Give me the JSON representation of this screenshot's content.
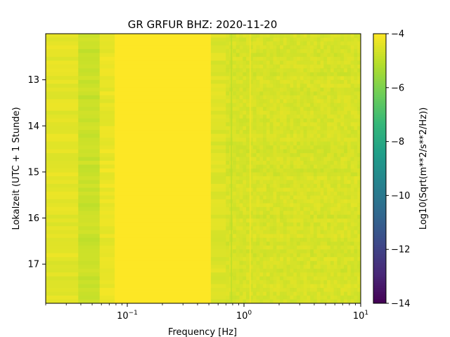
{
  "chart_data": {
    "type": "heatmap",
    "title": "GR GRFUR  BHZ: 2020-11-20",
    "xlabel": "Frequency [Hz]",
    "ylabel": "Lokalzeit (UTC + 1 Stunde)",
    "x_scale": "log",
    "xlim": [
      0.02,
      10
    ],
    "x_major_ticks": [
      {
        "value": 0.1,
        "base": "10",
        "exp": "−1"
      },
      {
        "value": 1,
        "base": "10",
        "exp": "0"
      },
      {
        "value": 10,
        "base": "10",
        "exp": "1"
      }
    ],
    "ylim": [
      17.85,
      12.0
    ],
    "y_inverted": true,
    "y_ticks": [
      13,
      14,
      15,
      16,
      17
    ],
    "y_tick_labels": [
      "13",
      "14",
      "15",
      "16",
      "17"
    ],
    "colorbar": {
      "label": "Log10(Sqrt(m**2/s**2/Hz))",
      "range": [
        -14,
        -4
      ],
      "ticks": [
        -4,
        -6,
        -8,
        -10,
        -12,
        -14
      ],
      "tick_labels": [
        "−4",
        "−6",
        "−8",
        "−10",
        "−12",
        "−14"
      ],
      "colormap": "viridis"
    },
    "frequency_bands": [
      {
        "from": 0.02,
        "to": 0.038,
        "value": -4.4
      },
      {
        "from": 0.038,
        "to": 0.058,
        "value": -4.8
      },
      {
        "from": 0.058,
        "to": 0.078,
        "value": -4.3
      },
      {
        "from": 0.078,
        "to": 0.52,
        "value": -4.0
      },
      {
        "from": 0.52,
        "to": 0.7,
        "value": -4.5
      },
      {
        "from": 0.7,
        "to": 10,
        "value": -4.6
      }
    ],
    "spectral_lines": [
      {
        "frequency": 0.78,
        "value": -5.0
      },
      {
        "frequency": 1.13,
        "value": -4.2
      }
    ]
  },
  "colors": {
    "viridis_stops": [
      "#440154",
      "#482878",
      "#3e4989",
      "#31688e",
      "#26828e",
      "#1f9e89",
      "#35b779",
      "#6ece58",
      "#b5de2b",
      "#fde725"
    ]
  }
}
